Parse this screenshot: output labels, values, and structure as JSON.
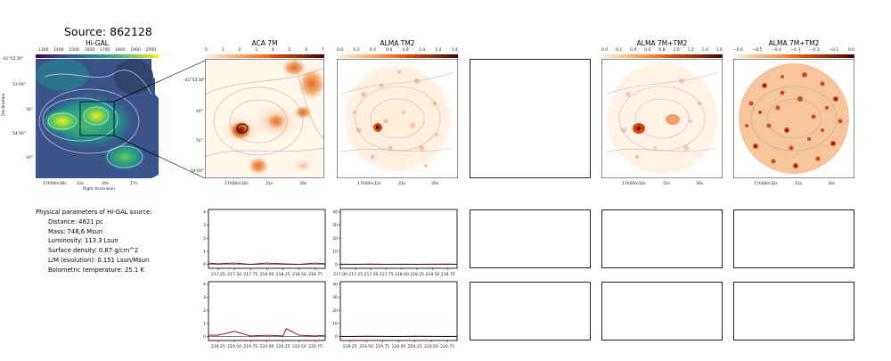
{
  "page": {
    "title": "Source: 862128"
  },
  "panels": {
    "higal": "Hi-GAL",
    "aca7m": "ACA 7M",
    "tm2": "ALMA TM2",
    "combo1": "ALMA 7M+TM2",
    "combo2": "ALMA 7M+TM2"
  },
  "higal_axes": {
    "xlabel": "Right Ascension",
    "ylabel": "Declination",
    "xticks": [
      "17h00m36s",
      "33s",
      "30s",
      "27s"
    ],
    "yticks": [
      "-41°52'30\"",
      "53'00\"",
      "30\"",
      "54'00\"",
      "30\""
    ]
  },
  "aca_axes": {
    "xticks": [
      "17h00m32s",
      "31s",
      "30s"
    ],
    "yticks": [
      "-41°53'30\"",
      "40\"",
      "50\"",
      "54'00\""
    ]
  },
  "tm2_axes": {
    "xticks": [
      "17h00m32s",
      "31s",
      "30s"
    ]
  },
  "colorbars": {
    "higal": [
      "1300",
      "1400",
      "1500",
      "1600",
      "1700",
      "1800",
      "1900",
      "2000"
    ],
    "aca7m": [
      "0",
      "1",
      "2",
      "3",
      "4",
      "5",
      "6",
      "7"
    ],
    "tm2": [
      "0.0",
      "0.2",
      "0.4",
      "0.6",
      "0.8",
      "1.0",
      "1.2",
      "1.4"
    ],
    "combo1": [
      "0.0",
      "0.2",
      "0.4",
      "0.6",
      "0.8",
      "1.0",
      "1.2",
      "1.4",
      "1.6"
    ],
    "combo2": [
      "−0.6",
      "−0.5",
      "−0.4",
      "−0.3",
      "−0.2",
      "−0.1",
      "0.0"
    ]
  },
  "params": {
    "header": "Physical parameters of Hi-GAL source:",
    "distance": "Distance: 4621 pc",
    "mass": "Mass: 748,6 Msun",
    "luminosity": "Luminosity: 113.3 Lsun",
    "surface_density": "Surface density: 0.87 g/cm^2",
    "lm": "L/M (evolution): 0.151 Lsun/Msun",
    "tbol": "Bolometric temperature: 25.1 K"
  },
  "chart_data": [
    {
      "type": "line",
      "panel": "spectrum-aca-row1",
      "x": [
        217.1,
        217.25,
        217.5,
        217.75,
        218.0,
        218.25,
        218.5,
        218.75,
        218.9
      ],
      "y": [
        0.1,
        0.05,
        0.1,
        0.0,
        0.1,
        0.05,
        0.0,
        0.1,
        0.05
      ],
      "xticks": [
        "217.25",
        "217.50",
        "217.75",
        "218.00",
        "218.25",
        "218.50",
        "218.75"
      ],
      "yticks": [
        "0",
        "1",
        "2",
        "3",
        "4"
      ],
      "ylim": [
        -0.3,
        4.2
      ]
    },
    {
      "type": "line",
      "panel": "spectrum-tm2-row1",
      "x": [
        217.0,
        217.25,
        217.5,
        217.75,
        218.0,
        218.25,
        218.5,
        218.75,
        218.9
      ],
      "y": [
        0.2,
        0.1,
        0.3,
        0.1,
        0.2,
        0.1,
        0.2,
        0.3,
        0.1
      ],
      "xticks": [
        "217.00",
        "217.25",
        "217.50",
        "217.75",
        "218.00",
        "218.25",
        "218.50",
        "218.75"
      ],
      "yticks": [
        "0",
        "10",
        "20",
        "30",
        "40"
      ],
      "ylim": [
        -3,
        42
      ]
    },
    {
      "type": "line",
      "panel": "spectrum-aca-row2",
      "x": [
        219.1,
        219.25,
        219.5,
        219.75,
        220.0,
        220.25,
        220.3,
        220.5,
        220.75,
        220.9
      ],
      "y": [
        0.1,
        0.1,
        0.4,
        0.05,
        0.1,
        0.05,
        0.6,
        0.1,
        0.05,
        0.1
      ],
      "xticks": [
        "219.25",
        "219.50",
        "219.75",
        "220.00",
        "220.25",
        "220.50",
        "220.75"
      ],
      "yticks": [
        "0",
        "1",
        "2",
        "3",
        "4"
      ],
      "ylim": [
        -0.3,
        4.2
      ]
    },
    {
      "type": "line",
      "panel": "spectrum-tm2-row2",
      "x": [
        219.1,
        219.25,
        219.5,
        219.75,
        220.0,
        220.25,
        220.5,
        220.75,
        220.9
      ],
      "y": [
        0.2,
        0.1,
        0.3,
        0.2,
        0.1,
        0.3,
        0.2,
        0.1,
        0.2
      ],
      "xticks": [
        "219.25",
        "219.50",
        "219.75",
        "220.00",
        "220.25",
        "220.50",
        "220.75"
      ],
      "yticks": [
        "0",
        "10",
        "20",
        "30",
        "40"
      ],
      "ylim": [
        -3,
        42
      ]
    }
  ]
}
